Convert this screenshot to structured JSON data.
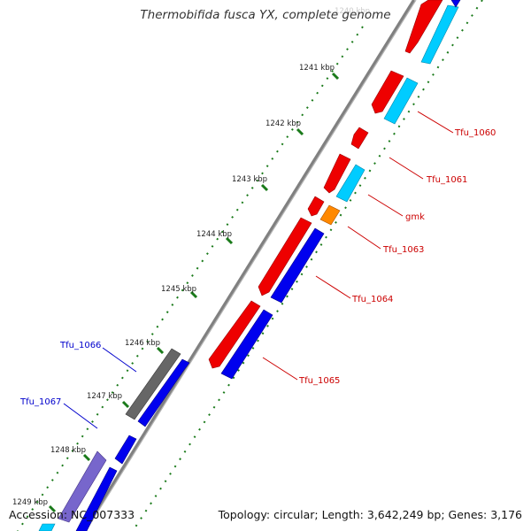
{
  "title": "Thermobifida fusca YX, complete genome",
  "ruler": {
    "ticks": [
      "1240 kbp",
      "1241 kbp",
      "1242 kbp",
      "1243 kbp",
      "1244 kbp",
      "1245 kbp",
      "1246 kbp",
      "1247 kbp",
      "1248 kbp",
      "1249 kbp"
    ]
  },
  "gene_labels": {
    "right": [
      {
        "name": "Tfu_1060",
        "color": "#cc0000"
      },
      {
        "name": "Tfu_1061",
        "color": "#cc0000"
      },
      {
        "name": "gmk",
        "color": "#cc0000"
      },
      {
        "name": "Tfu_1063",
        "color": "#cc0000"
      },
      {
        "name": "Tfu_1064",
        "color": "#cc0000"
      },
      {
        "name": "Tfu_1065",
        "color": "#cc0000"
      }
    ],
    "left": [
      {
        "name": "Tfu_1066",
        "color": "#0000cc"
      },
      {
        "name": "Tfu_1067",
        "color": "#0000cc"
      }
    ]
  },
  "colors": {
    "cds_forward": "#ee0000",
    "orf_forward": "#00ccff",
    "cds_reverse": "#0000ee",
    "rna": "#ff8800",
    "pseudogene": "#666666",
    "reverse_light": "#7766cc",
    "backbone": "#888888",
    "ruler_dots": "#1a7a1a"
  },
  "footer": {
    "accession": "Accession: NC_007333",
    "summary": "Topology: circular; Length: 3,642,249 bp; Genes: 3,176"
  }
}
